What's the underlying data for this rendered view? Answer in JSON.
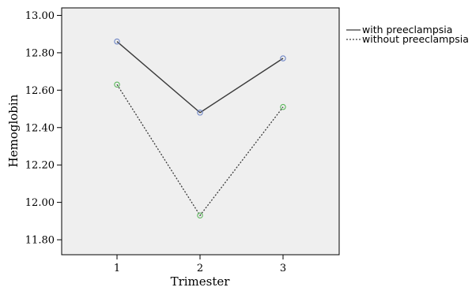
{
  "chart_data": {
    "type": "line",
    "xlabel": "Trimester",
    "ylabel": "Hemoglobin",
    "categories": [
      "1",
      "2",
      "3"
    ],
    "x_ticks": [
      "1",
      "2",
      "3"
    ],
    "y_ticks": [
      "11.80",
      "12.00",
      "12.20",
      "12.40",
      "12.60",
      "12.80",
      "13.00"
    ],
    "ylim": [
      11.72,
      13.04
    ],
    "grid": false,
    "legend_position": "top-right (outside plot)",
    "series": [
      {
        "name": "with preeclampsia",
        "values": [
          12.86,
          12.48,
          12.77
        ],
        "line_style": "solid",
        "line_color": "#3a3a3a",
        "marker_color": "#6f86c6"
      },
      {
        "name": "without preeclampsia",
        "values": [
          12.63,
          11.93,
          12.51
        ],
        "line_style": "dotted",
        "line_color": "#3a3a3a",
        "marker_color": "#5cb85c"
      }
    ],
    "plot_background": "#efefef"
  }
}
